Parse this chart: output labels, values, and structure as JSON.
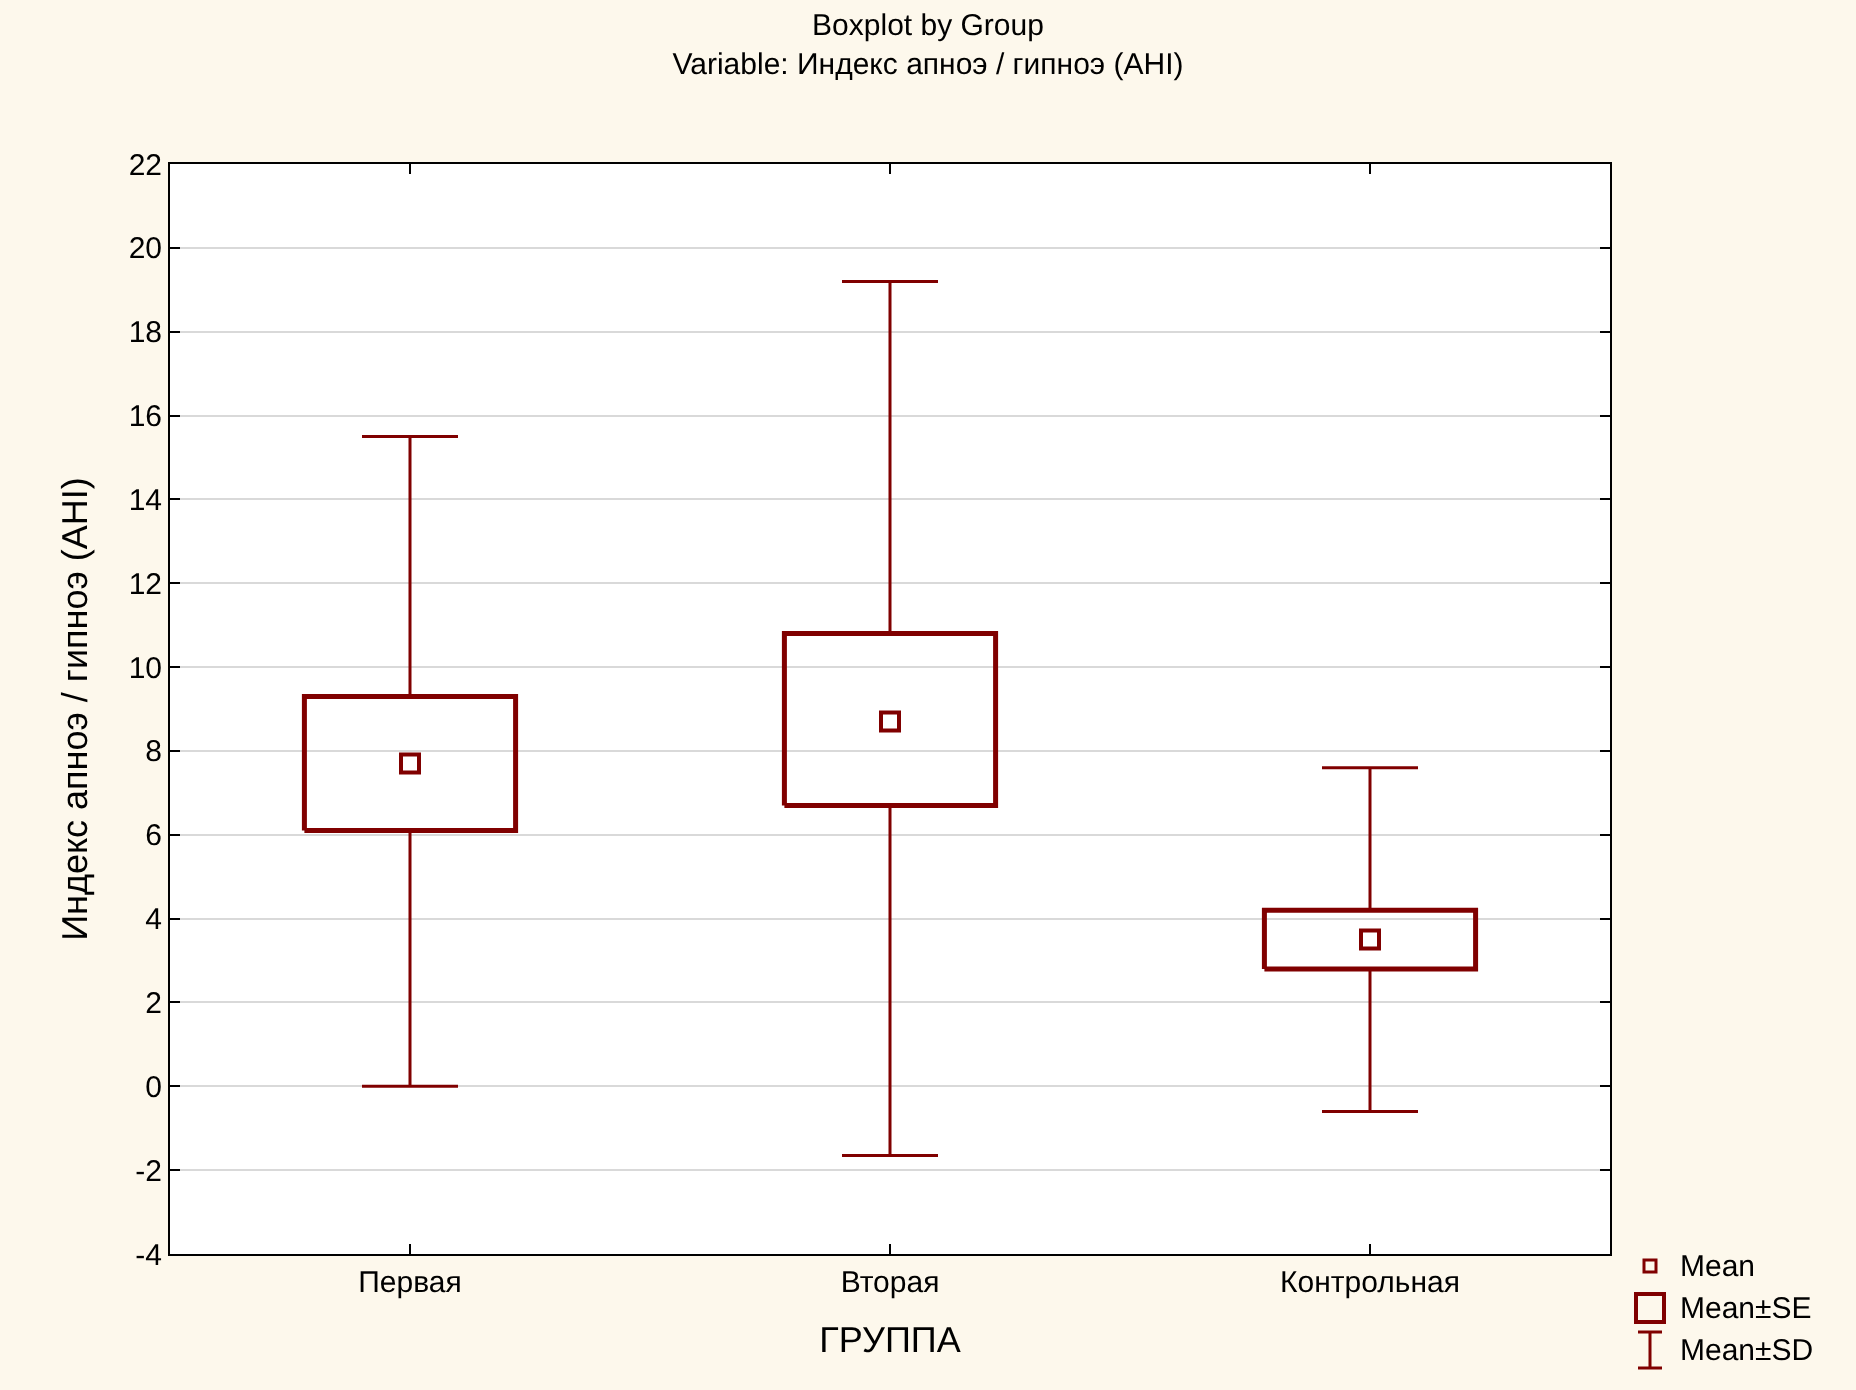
{
  "chart_data": {
    "type": "box",
    "title": "Boxplot by Group",
    "subtitle": "Variable: Индекс апноэ / гипноэ (AHI)",
    "xlabel": "ГРУППА",
    "ylabel": "Индекс апноэ / гипноэ (AHI)",
    "categories": [
      "Первая",
      "Вторая",
      "Контрольная"
    ],
    "boxes": [
      {
        "low": 0,
        "q1": 6.1,
        "median": 7.7,
        "q3": 9.3,
        "high": 15.5
      },
      {
        "low": -1.65,
        "q1": 6.7,
        "median": 8.7,
        "q3": 10.8,
        "high": 19.2
      },
      {
        "low": -0.6,
        "q1": 2.8,
        "median": 3.5,
        "q3": 4.2,
        "high": 7.6
      }
    ],
    "color": "#800000",
    "ylim": [
      -4,
      22
    ],
    "yticks": [
      -4,
      -2,
      0,
      2,
      4,
      6,
      8,
      10,
      12,
      14,
      16,
      18,
      20,
      22
    ],
    "grid": "y",
    "annotations": [
      "Mean",
      "Mean±SE",
      "Mean±SD"
    ]
  }
}
